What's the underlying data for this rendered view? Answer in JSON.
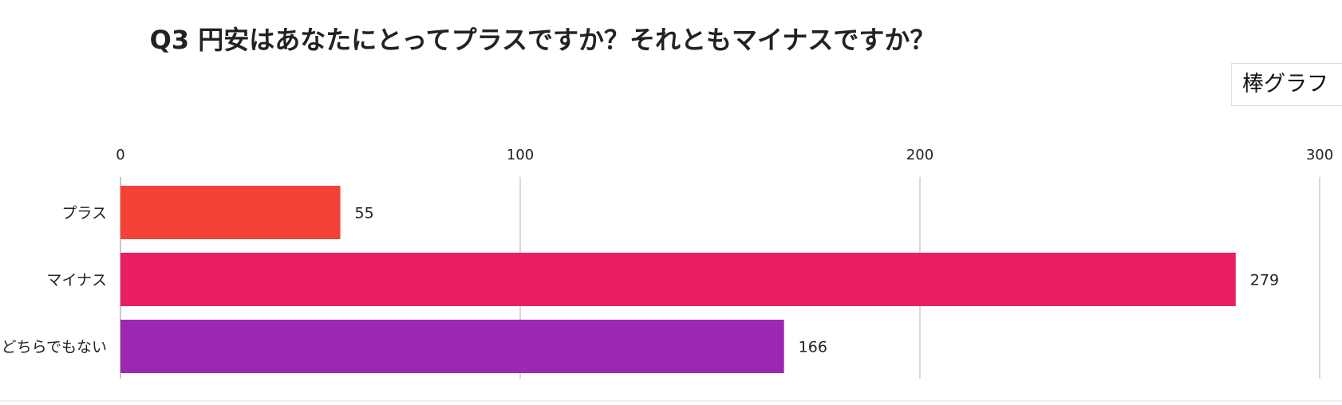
{
  "title": "Q3 円安はあなたにとってプラスですか？それともマイナスですか？",
  "chart_type_button": {
    "label": "棒グラフ"
  },
  "colors": {
    "grid": "#d9d9d9",
    "axis": "#c8c8c8",
    "text": "#222222"
  },
  "chart_data": {
    "type": "bar",
    "orientation": "horizontal",
    "xlim": [
      0,
      300
    ],
    "x_ticks": [
      0,
      100,
      200,
      300
    ],
    "x_axis_position": "top",
    "grid": true,
    "categories": [
      "プラス",
      "マイナス",
      "どちらでもない"
    ],
    "values": [
      55,
      279,
      166
    ],
    "bar_colors": [
      "#f44336",
      "#e91e63",
      "#9c27b0"
    ],
    "data_labels": [
      "55",
      "279",
      "166"
    ]
  }
}
